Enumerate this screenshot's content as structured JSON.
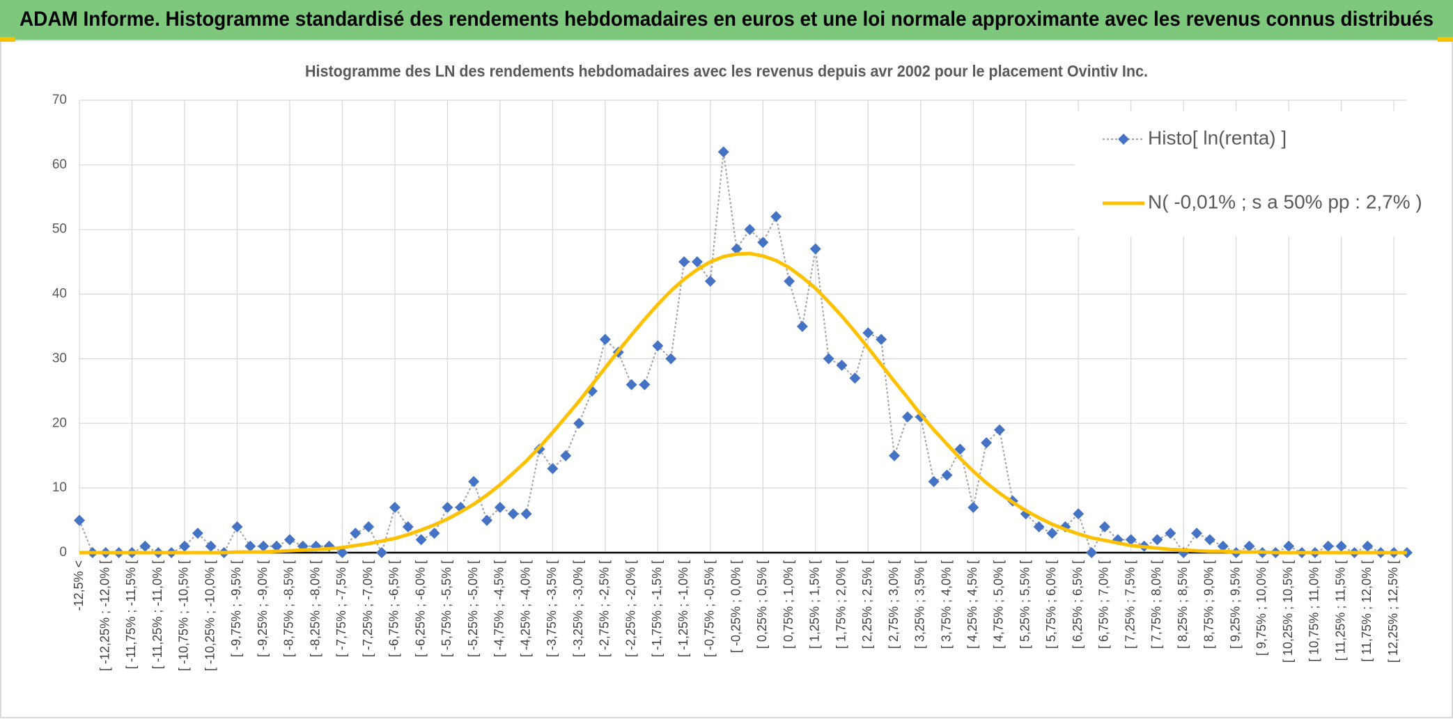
{
  "header": {
    "title": "ADAM Informe. Histogramme standardisé des rendements hebdomadaires en euros et une loi normale approximante avec les revenus connus distribués"
  },
  "chart_data": {
    "type": "line",
    "title": "Histogramme des LN des rendements hebdomadaires avec les revenus depuis avr 2002 pour le placement Ovintiv Inc.",
    "categories": [
      "-12,5% <",
      null,
      "[ -12,25% ; -12,0% [",
      null,
      "[ -11,75% ; -11,5% [",
      null,
      "[ -11,25% ; -11,0% [",
      null,
      "[ -10,75% ; -10,5% [",
      null,
      "[ -10,25% ; -10,0% [",
      null,
      "[ -9,75% ; -9,5% [",
      null,
      "[ -9,25% ; -9,0% [",
      null,
      "[ -8,75% ; -8,5% [",
      null,
      "[ -8,25% ; -8,0% [",
      null,
      "[ -7,75% ; -7,5% [",
      null,
      "[ -7,25% ; -7,0% [",
      null,
      "[ -6,75% ; -6,5% [",
      null,
      "[ -6,25% ; -6,0% [",
      null,
      "[ -5,75% ; -5,5% [",
      null,
      "[ -5,25% ; -5,0% [",
      null,
      "[ -4,75% ; -4,5% [",
      null,
      "[ -4,25% ; -4,0% [",
      null,
      "[ -3,75% ; -3,5% [",
      null,
      "[ -3,25% ; -3,0% [",
      null,
      "[ -2,75% ; -2,5% [",
      null,
      "[ -2,25% ; -2,0% [",
      null,
      "[ -1,75% ; -1,5% [",
      null,
      "[ -1,25% ; -1,0% [",
      null,
      "[ -0,75% ; -0,5% [",
      null,
      "[ -0,25% ; 0,0% [",
      null,
      "[ 0,25% ; 0,5% [",
      null,
      "[ 0,75% ; 1,0% [",
      null,
      "[ 1,25% ; 1,5% [",
      null,
      "[ 1,75% ; 2,0% [",
      null,
      "[ 2,25% ; 2,5% [",
      null,
      "[ 2,75% ; 3,0% [",
      null,
      "[ 3,25% ; 3,5% [",
      null,
      "[ 3,75% ; 4,0% [",
      null,
      "[ 4,25% ; 4,5% [",
      null,
      "[ 4,75% ; 5,0% [",
      null,
      "[ 5,25% ; 5,5% [",
      null,
      "[ 5,75% ; 6,0% [",
      null,
      "[ 6,25% ; 6,5% [",
      null,
      "[ 6,75% ; 7,0% [",
      null,
      "[ 7,25% ; 7,5% [",
      null,
      "[ 7,75% ; 8,0% [",
      null,
      "[ 8,25% ; 8,5% [",
      null,
      "[ 8,75% ; 9,0% [",
      null,
      "[ 9,25% ; 9,5% [",
      null,
      "[ 9,75% ; 10,0% [",
      null,
      "[ 10,25% ; 10,5% [",
      null,
      "[ 10,75% ; 11,0% [",
      null,
      "[ 11,25% ; 11,5% [",
      null,
      "[ 11,75% ; 12,0% [",
      null,
      "[ 12,25% ; 12,5% [",
      null
    ],
    "series": [
      {
        "name": "Histo[ ln(renta) ]",
        "color": "#4472c4",
        "line_color": "#a6a6a6",
        "marker": "diamond",
        "dashed": true,
        "values": [
          5,
          0,
          0,
          0,
          0,
          1,
          0,
          0,
          1,
          3,
          1,
          0,
          4,
          1,
          1,
          1,
          2,
          1,
          1,
          1,
          0,
          3,
          4,
          0,
          7,
          4,
          2,
          3,
          7,
          7,
          11,
          5,
          7,
          6,
          6,
          16,
          13,
          15,
          20,
          25,
          33,
          31,
          26,
          26,
          32,
          30,
          45,
          45,
          42,
          62,
          47,
          50,
          48,
          52,
          42,
          35,
          47,
          30,
          29,
          27,
          34,
          33,
          15,
          21,
          21,
          11,
          12,
          16,
          7,
          17,
          19,
          8,
          6,
          4,
          3,
          4,
          6,
          0,
          4,
          2,
          2,
          1,
          2,
          3,
          0,
          3,
          2,
          1,
          0,
          1,
          0,
          0,
          1,
          0,
          0,
          1,
          1,
          0,
          1,
          0,
          0,
          0
        ]
      },
      {
        "name": "N( -0,01% ; s a 50% pp : 2,7% )",
        "color": "#ffc000",
        "values": [
          0,
          0,
          0,
          0,
          0,
          0,
          0,
          0,
          0,
          0,
          0,
          0,
          0.1,
          0.1,
          0.1,
          0.2,
          0.3,
          0.4,
          0.5,
          0.6,
          0.8,
          1.1,
          1.4,
          1.8,
          2.2,
          2.8,
          3.5,
          4.3,
          5.2,
          6.3,
          7.5,
          8.9,
          10.5,
          12.3,
          14.2,
          16.3,
          18.6,
          21.0,
          23.4,
          26.0,
          28.6,
          31.2,
          33.7,
          36.1,
          38.4,
          40.5,
          42.3,
          43.8,
          45.0,
          45.8,
          46.2,
          46.3,
          45.9,
          45.2,
          44.1,
          42.6,
          40.9,
          38.8,
          36.6,
          34.2,
          31.7,
          29.1,
          26.5,
          24.0,
          21.4,
          19.0,
          16.8,
          14.6,
          12.6,
          10.8,
          9.2,
          7.8,
          6.5,
          5.4,
          4.4,
          3.6,
          2.9,
          2.3,
          1.9,
          1.5,
          1.1,
          0.9,
          0.7,
          0.5,
          0.4,
          0.3,
          0.2,
          0.2,
          0.1,
          0.1,
          0.1,
          0,
          0,
          0,
          0,
          0,
          0,
          0,
          0,
          0,
          0,
          0
        ]
      }
    ],
    "ylim": [
      0,
      70
    ],
    "yticks": [
      0,
      10,
      20,
      30,
      40,
      50,
      60,
      70
    ],
    "grid": true,
    "legend": "upper right"
  }
}
